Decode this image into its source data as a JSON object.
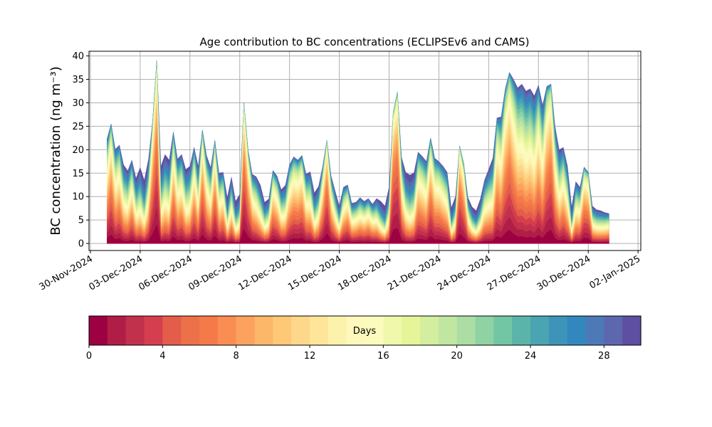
{
  "chart_data": {
    "type": "area",
    "stacked": true,
    "title": "Age contribution to BC concentrations (ECLIPSEv6 and CAMS)",
    "ylabel": "BC concentration (ng m⁻³)",
    "xlabel": "",
    "ylim": [
      -1.5,
      41
    ],
    "xlim": [
      "2024-11-29T22:00",
      "2025-01-02T04:00"
    ],
    "grid": true,
    "yticks": [
      "0",
      "5",
      "10",
      "15",
      "20",
      "25",
      "30",
      "35",
      "40"
    ],
    "xticks": [
      "30-Nov-2024",
      "03-Dec-2024",
      "06-Dec-2024",
      "09-Dec-2024",
      "12-Dec-2024",
      "15-Dec-2024",
      "18-Dec-2024",
      "21-Dec-2024",
      "24-Dec-2024",
      "27-Dec-2024",
      "30-Dec-2024",
      "02-Jan-2025"
    ],
    "x_start": "2024-12-01T00:00",
    "x_step_hours": 6,
    "total": [
      22.3,
      25.5,
      20.1,
      21.0,
      16.8,
      15.5,
      17.8,
      13.9,
      16.2,
      13.5,
      18.0,
      26.0,
      39.0,
      16.5,
      19.0,
      17.8,
      23.8,
      18.0,
      19.0,
      15.8,
      16.5,
      20.5,
      16.5,
      24.2,
      18.8,
      16.2,
      22.0,
      15.0,
      15.2,
      9.8,
      14.2,
      9.0,
      10.5,
      30.0,
      20.0,
      14.8,
      14.2,
      12.4,
      8.8,
      9.5,
      15.6,
      14.4,
      11.5,
      12.4,
      16.8,
      18.5,
      17.8,
      18.8,
      14.8,
      15.3,
      10.8,
      12.2,
      16.5,
      22.0,
      14.5,
      11.2,
      8.0,
      12.0,
      12.5,
      8.6,
      8.8,
      9.8,
      9.0,
      9.6,
      8.4,
      9.6,
      9.0,
      8.0,
      12.0,
      28.0,
      32.3,
      18.4,
      15.2,
      14.6,
      15.1,
      19.5,
      18.6,
      17.5,
      22.5,
      18.2,
      17.5,
      16.5,
      15.2,
      7.6,
      10.0,
      20.8,
      17.0,
      9.8,
      7.8,
      7.0,
      9.5,
      13.5,
      15.8,
      18.2,
      26.8,
      27.0,
      33.0,
      36.5,
      35.0,
      33.2,
      34.0,
      32.5,
      33.0,
      31.5,
      33.8,
      29.5,
      33.5,
      34.0,
      25.0,
      20.0,
      20.5,
      16.5,
      7.8,
      13.2,
      12.0,
      16.3,
      15.2,
      8.0,
      7.2,
      7.0,
      6.6,
      6.4
    ],
    "colorbar": {
      "label": "Days",
      "min": 0,
      "max": 30,
      "ticks": [
        "0",
        "4",
        "8",
        "12",
        "16",
        "20",
        "24",
        "28"
      ],
      "colors": [
        "#9e0142",
        "#b01e47",
        "#c2314c",
        "#d53e4f",
        "#e35d4a",
        "#ec7048",
        "#f57a4a",
        "#f98d52",
        "#fca25e",
        "#fdb768",
        "#fec877",
        "#fdd78a",
        "#fee59a",
        "#fdf2ac",
        "#fff8bc",
        "#fbfbbd",
        "#f0f9ab",
        "#e6f598",
        "#d2ee9e",
        "#c1e6a1",
        "#abdda4",
        "#8fd2a4",
        "#72c6a4",
        "#5ab4a9",
        "#4ba4b1",
        "#3d93b8",
        "#3288bd",
        "#4d79b6",
        "#5c67ae",
        "#5e4fa2"
      ]
    }
  }
}
